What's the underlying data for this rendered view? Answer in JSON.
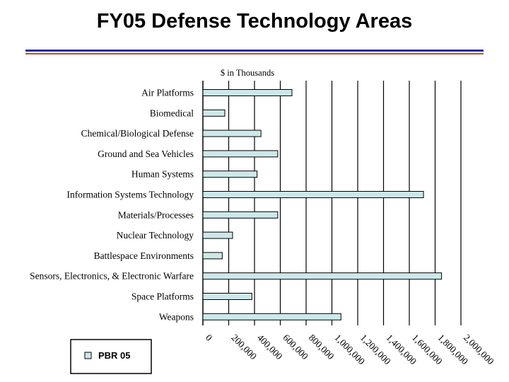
{
  "slide": {
    "title": "FY05 Defense Technology Areas"
  },
  "chart_data": {
    "type": "bar",
    "orientation": "horizontal",
    "title": "",
    "unit_note": "$ in Thousands",
    "categories": [
      "Air Platforms",
      "Biomedical",
      "Chemical/Biological Defense",
      "Ground and Sea Vehicles",
      "Human Systems",
      "Information Systems Technology",
      "Materials/Processes",
      "Nuclear Technology",
      "Battlespace Environments",
      "Sensors, Electronics, & Electronic Warfare",
      "Space Platforms",
      "Weapons"
    ],
    "series": [
      {
        "name": "PBR 05",
        "color": "#cde8ea",
        "values": [
          690000,
          170000,
          450000,
          580000,
          420000,
          1710000,
          580000,
          230000,
          150000,
          1850000,
          380000,
          1070000
        ]
      }
    ],
    "xlim": [
      0,
      2000000
    ],
    "xticks": [
      "0",
      "200,000",
      "400,000",
      "600,000",
      "800,000",
      "1,000,000",
      "1,200,000",
      "1,400,000",
      "1,600,000",
      "1,800,000",
      "2,000,000"
    ],
    "xtick_values": [
      0,
      200000,
      400000,
      600000,
      800000,
      1000000,
      1200000,
      1400000,
      1600000,
      1800000,
      2000000
    ],
    "grid": "vertical",
    "legend": "bottom-left",
    "bar_color": "#cde8ea",
    "bar_edge_color": "#000000"
  }
}
